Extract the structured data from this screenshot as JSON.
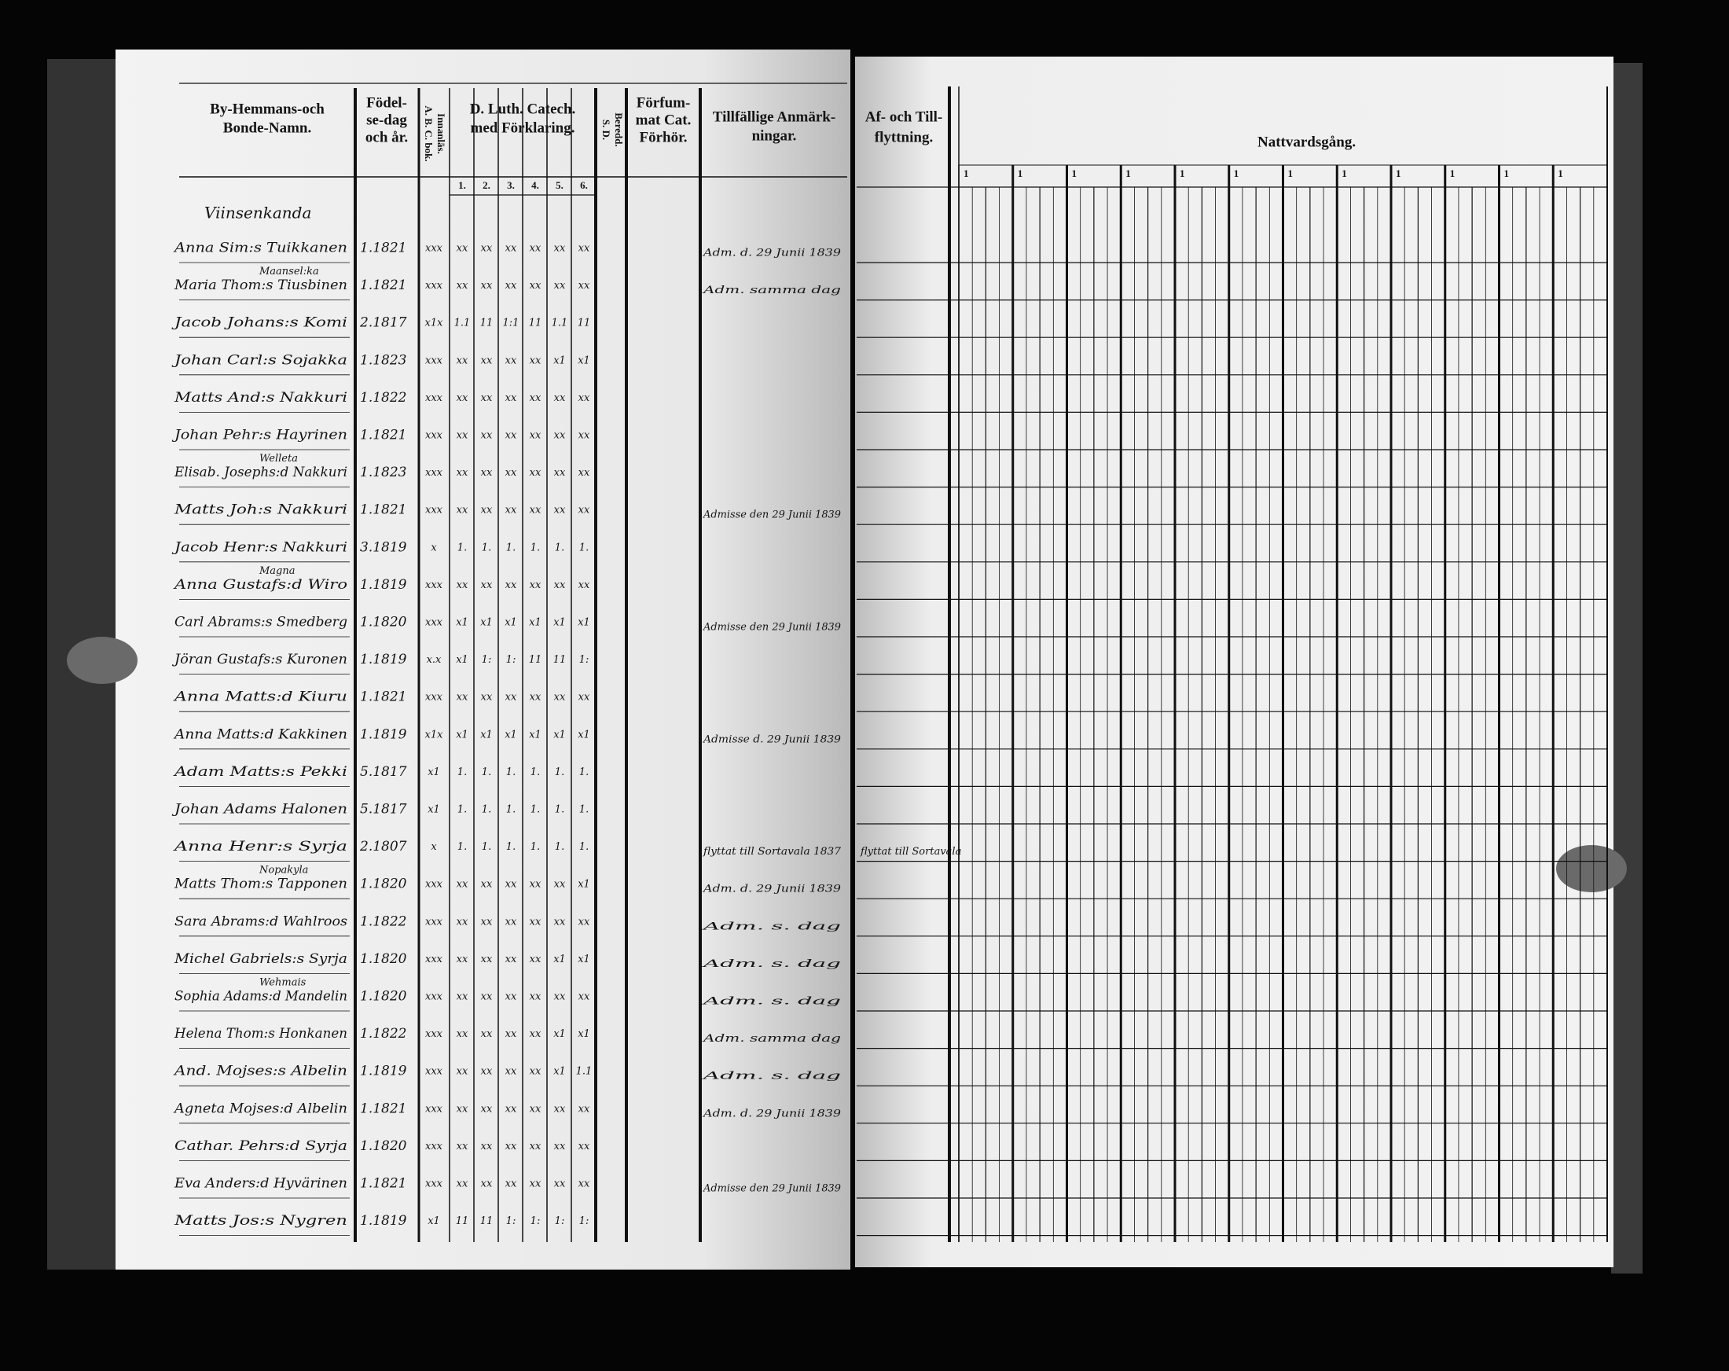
{
  "left_page": {
    "headers": {
      "name": [
        "By-Hemmans-och",
        "Bonde-Namn."
      ],
      "birth": [
        "Födel-",
        "se-dag",
        "och år."
      ],
      "abc": [
        "A. B. C. bok.",
        "Innanläs."
      ],
      "catechism": [
        "D. Luth. Catech.",
        "med Förklaring."
      ],
      "catechism_parts": [
        "1.",
        "2.",
        "3.",
        "4.",
        "5.",
        "6."
      ],
      "sd": [
        "S. D.",
        "Beredd."
      ],
      "neglected": [
        "Förfum-",
        "mat Cat.",
        "Förhör."
      ],
      "remarks": [
        "Tillfällige Anmärk-",
        "ningar."
      ]
    },
    "village": "Viinsenkanda",
    "rows": [
      {
        "name": "Anna Sim:s Tuikkanen",
        "birth": "1.1821",
        "abc": "xxx",
        "marks": [
          "xx",
          "xx",
          "xx",
          "xx",
          "xx",
          "xx"
        ],
        "note": "Adm. d. 29 Junii 1839"
      },
      {
        "name": "Maria Thom:s Tiusbinen",
        "above": "Maansel:ka",
        "birth": "1.1821",
        "abc": "xxx",
        "marks": [
          "xx",
          "xx",
          "xx",
          "xx",
          "xx",
          "xx"
        ],
        "note": "Adm. samma dag"
      },
      {
        "name": "Jacob Johans:s Komi",
        "birth": "2.1817",
        "abc": "x1x",
        "marks": [
          "1.1",
          "11",
          "1:1",
          "11",
          "1.1",
          "11"
        ]
      },
      {
        "name": "Johan Carl:s Sojakka",
        "birth": "1.1823",
        "abc": "xxx",
        "marks": [
          "xx",
          "xx",
          "xx",
          "xx",
          "x1",
          "x1"
        ]
      },
      {
        "name": "Matts And:s Nakkuri",
        "birth": "1.1822",
        "abc": "xxx",
        "marks": [
          "xx",
          "xx",
          "xx",
          "xx",
          "xx",
          "xx"
        ]
      },
      {
        "name": "Johan Pehr:s Hayrinen",
        "birth": "1.1821",
        "abc": "xxx",
        "marks": [
          "xx",
          "xx",
          "xx",
          "xx",
          "xx",
          "xx"
        ]
      },
      {
        "name": "Elisab. Josephs:d Nakkuri",
        "above": "Welleta",
        "birth": "1.1823",
        "abc": "xxx",
        "marks": [
          "xx",
          "xx",
          "xx",
          "xx",
          "xx",
          "xx"
        ]
      },
      {
        "name": "Matts Joh:s Nakkuri",
        "birth": "1.1821",
        "abc": "xxx",
        "marks": [
          "xx",
          "xx",
          "xx",
          "xx",
          "xx",
          "xx"
        ],
        "note": "Admisse den 29 Junii 1839"
      },
      {
        "name": "Jacob Henr:s Nakkuri",
        "birth": "3.1819",
        "abc": "x",
        "marks": [
          "1.",
          "1.",
          "1.",
          "1.",
          "1.",
          "1."
        ]
      },
      {
        "name": "Anna Gustafs:d Wiro",
        "above": "Magna",
        "birth": "1.1819",
        "abc": "xxx",
        "marks": [
          "xx",
          "xx",
          "xx",
          "xx",
          "xx",
          "xx"
        ]
      },
      {
        "name": "Carl Abrams:s Smedberg",
        "birth": "1.1820",
        "abc": "xxx",
        "marks": [
          "x1",
          "x1",
          "x1",
          "x1",
          "x1",
          "x1"
        ],
        "note": "Admisse den 29 Junii 1839"
      },
      {
        "name": "Jöran Gustafs:s Kuronen",
        "birth": "1.1819",
        "abc": "x.x",
        "marks": [
          "x1",
          "1:",
          "1:",
          "11",
          "11",
          "1:"
        ]
      },
      {
        "name": "Anna Matts:d Kiuru",
        "birth": "1.1821",
        "abc": "xxx",
        "marks": [
          "xx",
          "xx",
          "xx",
          "xx",
          "xx",
          "xx"
        ]
      },
      {
        "name": "Anna Matts:d Kakkinen",
        "birth": "1.1819",
        "abc": "x1x",
        "marks": [
          "x1",
          "x1",
          "x1",
          "x1",
          "x1",
          "x1"
        ],
        "note": "Admisse d. 29 Junii 1839"
      },
      {
        "name": "Adam Matts:s Pekki",
        "birth": "5.1817",
        "abc": "x1",
        "marks": [
          "1.",
          "1.",
          "1.",
          "1.",
          "1.",
          "1."
        ]
      },
      {
        "name": "Johan Adams Halonen",
        "birth": "5.1817",
        "abc": "x1",
        "marks": [
          "1.",
          "1.",
          "1.",
          "1.",
          "1.",
          "1."
        ]
      },
      {
        "name": "Anna Henr:s Syrja",
        "birth": "2.1807",
        "abc": "x",
        "marks": [
          "1.",
          "1.",
          "1.",
          "1.",
          "1.",
          "1."
        ],
        "note": "flyttat till Sortavala 1837",
        "moving": "flyttat till Sortavala"
      },
      {
        "name": "Matts Thom:s Tapponen",
        "above": "Nopakyla",
        "birth": "1.1820",
        "abc": "xxx",
        "marks": [
          "xx",
          "xx",
          "xx",
          "xx",
          "xx",
          "x1"
        ],
        "note": "Adm. d. 29 Junii 1839"
      },
      {
        "name": "Sara Abrams:d Wahlroos",
        "birth": "1.1822",
        "abc": "xxx",
        "marks": [
          "xx",
          "xx",
          "xx",
          "xx",
          "xx",
          "xx"
        ],
        "note": "Adm. s. dag"
      },
      {
        "name": "Michel Gabriels:s Syrja",
        "birth": "1.1820",
        "abc": "xxx",
        "marks": [
          "xx",
          "xx",
          "xx",
          "xx",
          "x1",
          "x1"
        ],
        "note": "Adm. s. dag"
      },
      {
        "name": "Sophia Adams:d Mandelin",
        "above": "Wehmais",
        "birth": "1.1820",
        "abc": "xxx",
        "marks": [
          "xx",
          "xx",
          "xx",
          "xx",
          "xx",
          "xx"
        ],
        "note": "Adm. s. dag"
      },
      {
        "name": "Helena Thom:s Honkanen",
        "birth": "1.1822",
        "abc": "xxx",
        "marks": [
          "xx",
          "xx",
          "xx",
          "xx",
          "x1",
          "x1"
        ],
        "note": "Adm. samma dag"
      },
      {
        "name": "And. Mojses:s Albelin",
        "birth": "1.1819",
        "abc": "xxx",
        "marks": [
          "xx",
          "xx",
          "xx",
          "xx",
          "x1",
          "1.1"
        ],
        "note": "Adm. s. dag"
      },
      {
        "name": "Agneta Mojses:d Albelin",
        "birth": "1.1821",
        "abc": "xxx",
        "marks": [
          "xx",
          "xx",
          "xx",
          "xx",
          "xx",
          "xx"
        ],
        "note": "Adm. d. 29 Junii 1839"
      },
      {
        "name": "Cathar. Pehrs:d Syrja",
        "birth": "1.1820",
        "abc": "xxx",
        "marks": [
          "xx",
          "xx",
          "xx",
          "xx",
          "xx",
          "xx"
        ]
      },
      {
        "name": "Eva Anders:d Hyvärinen",
        "birth": "1.1821",
        "abc": "xxx",
        "marks": [
          "xx",
          "xx",
          "xx",
          "xx",
          "xx",
          "xx"
        ],
        "note": "Admisse den 29 Junii 1839"
      },
      {
        "name": "Matts Jos:s Nygren",
        "birth": "1.1819",
        "abc": "x1",
        "marks": [
          "11",
          "11",
          "1:",
          "1:",
          "1:",
          "1:"
        ]
      }
    ]
  },
  "right_page": {
    "moving_header": [
      "Af- och Till-",
      "flyttning."
    ],
    "communion_header": "Nattvardsgång.",
    "group_labels": [
      "1",
      "1",
      "1",
      "1",
      "1",
      "1",
      "1",
      "1",
      "1",
      "1",
      "1",
      "1"
    ]
  }
}
